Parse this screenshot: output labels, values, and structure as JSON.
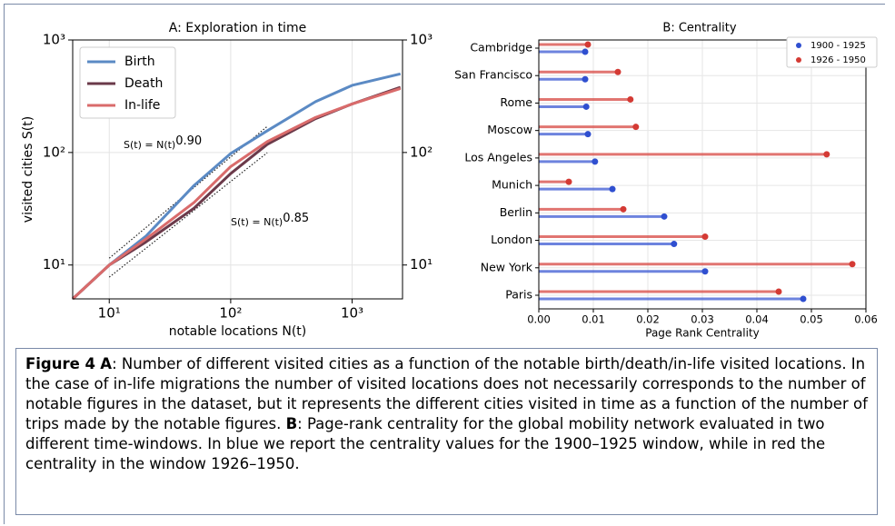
{
  "chart_data": [
    {
      "type": "line",
      "title": "A: Exploration in time",
      "xlabel": "notable locations N(t)",
      "ylabel": "visited cities S(t)",
      "log_x": true,
      "log_y": true,
      "grid": true,
      "legend": "upper left",
      "x": [
        5,
        10,
        20,
        50,
        100,
        200,
        500,
        1000,
        2500
      ],
      "series": [
        {
          "name": "Birth",
          "color": "#5b8ac4",
          "values": [
            5,
            10,
            18,
            51,
            98,
            156,
            283,
            395,
            500
          ]
        },
        {
          "name": "Death",
          "color": "#6b3a4a",
          "values": [
            5,
            10,
            16,
            32,
            65,
            118,
            200,
            270,
            380
          ]
        },
        {
          "name": "In-life",
          "color": "#d96b6b",
          "values": [
            5,
            10,
            17,
            36,
            75,
            125,
            205,
            270,
            370
          ]
        }
      ],
      "xlim": [
        5,
        2600
      ],
      "ylim": [
        5,
        1000
      ],
      "y2lim": [
        5,
        1000
      ],
      "xticks": [
        {
          "value": 10,
          "label": "10¹"
        },
        {
          "value": 100,
          "label": "10²"
        },
        {
          "value": 1000,
          "label": "10³"
        }
      ],
      "yticks": [
        {
          "value": 10,
          "label": "10¹"
        },
        {
          "value": 100,
          "label": "10²"
        },
        {
          "value": 1000,
          "label": "10³"
        }
      ],
      "y2ticks": [
        {
          "value": 10,
          "label": "10¹"
        },
        {
          "value": 100,
          "label": "10²"
        },
        {
          "value": 1000,
          "label": "10³"
        }
      ],
      "annotations": [
        {
          "text": "S(t) = N(t)",
          "exponent": "0.90"
        },
        {
          "text": "S(t) = N(t)",
          "exponent": "0.85"
        }
      ]
    },
    {
      "type": "lollipop",
      "title": "B: Centrality",
      "xlabel": "Page Rank Centrality",
      "grid": true,
      "legend": "upper right",
      "categories": [
        "Cambridge",
        "San Francisco",
        "Rome",
        "Moscow",
        "Los Angeles",
        "Munich",
        "Berlin",
        "London",
        "New York",
        "Paris"
      ],
      "series": [
        {
          "name": "1900 - 1925",
          "color": "#2f4fd0",
          "values": [
            0.0085,
            0.0085,
            0.0087,
            0.009,
            0.0103,
            0.0135,
            0.023,
            0.0248,
            0.0305,
            0.0485
          ]
        },
        {
          "name": "1926 - 1950",
          "color": "#d43a34",
          "values": [
            0.009,
            0.0145,
            0.0168,
            0.0178,
            0.0528,
            0.0055,
            0.0155,
            0.0305,
            0.0575,
            0.044
          ]
        }
      ],
      "xlim": [
        0,
        0.06
      ],
      "xticks": [
        {
          "value": 0,
          "label": "0.00"
        },
        0.01,
        0.02,
        0.03,
        0.04,
        0.05,
        0.06
      ]
    }
  ],
  "caption": {
    "label": "Figure 4",
    "parts": [
      {
        "key": "A",
        "text": ": Number of different visited cities as a function of the notable birth/death/in-life visited locations. In the case of in-life migrations the number of visited locations does not necessarily corresponds to the number of notable figures in the dataset, but it represents the different cities visited in time as a function of the number of trips made by the notable figures. "
      },
      {
        "key": "B",
        "text": ": Page-rank centrality for the global mobility network evaluated in two different time-windows. In blue we report the centrality values for the 1900–1925 window, while in red the centrality in the window 1926–1950."
      }
    ]
  }
}
